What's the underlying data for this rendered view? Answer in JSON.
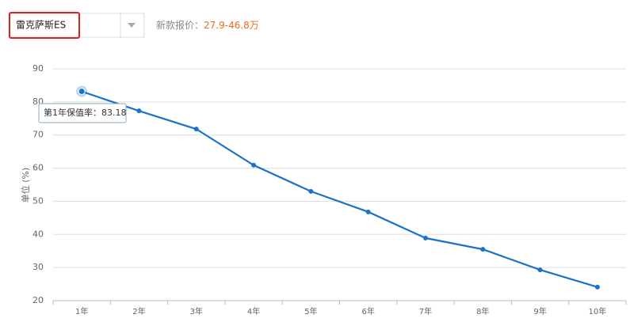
{
  "header": {
    "select": "雷克萨斯ES",
    "price_label": "新款报价：",
    "price": "27.9-46.8万"
  },
  "chart_data": {
    "type": "line",
    "y_label": "单位 (%)",
    "categories": [
      "1年",
      "2年",
      "3年",
      "4年",
      "5年",
      "6年",
      "7年",
      "8年",
      "9年",
      "10年"
    ],
    "values": [
      83.18,
      77.3,
      71.8,
      60.9,
      53.0,
      46.8,
      38.9,
      35.5,
      29.3,
      24.1
    ],
    "color": "#1a73c4",
    "ylim": [
      20,
      90
    ],
    "yticks": [
      20,
      30,
      40,
      50,
      60,
      70,
      80,
      90
    ],
    "grid": true,
    "tooltip_label": "第1年保值率："
  }
}
